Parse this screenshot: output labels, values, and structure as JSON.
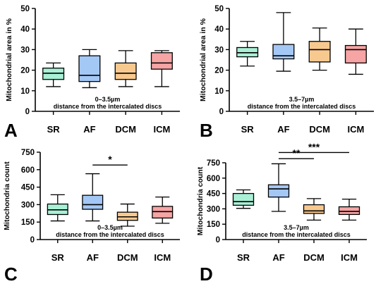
{
  "chart_data": [
    {
      "panel": "A",
      "type": "boxplot",
      "ylabel": "Mitochondrial area in %",
      "xlabel": [
        "0–3.5µm",
        "distance from the intercalated discs"
      ],
      "ylim": [
        0,
        50
      ],
      "yticks": [
        0,
        10,
        20,
        30,
        40,
        50
      ],
      "categories": [
        "SR",
        "AF",
        "DCM",
        "ICM"
      ],
      "boxes": [
        {
          "min": 12,
          "q1": 15.5,
          "median": 18.5,
          "q3": 21,
          "max": 23.5
        },
        {
          "min": 11.5,
          "q1": 14.5,
          "median": 17.5,
          "q3": 27,
          "max": 30
        },
        {
          "min": 12,
          "q1": 15.5,
          "median": 18.5,
          "q3": 23.5,
          "max": 29.5
        },
        {
          "min": 12,
          "q1": 20.5,
          "median": 23.5,
          "q3": 28.5,
          "max": 29.5
        }
      ],
      "significance": []
    },
    {
      "panel": "B",
      "type": "boxplot",
      "ylabel": "Mitochondrial area in %",
      "xlabel": [
        "3.5–7µm",
        "distance from the intercalated discs"
      ],
      "ylim": [
        0,
        50
      ],
      "yticks": [
        0,
        10,
        20,
        30,
        40,
        50
      ],
      "categories": [
        "SR",
        "AF",
        "DCM",
        "ICM"
      ],
      "boxes": [
        {
          "min": 22,
          "q1": 26.5,
          "median": 28.5,
          "q3": 31,
          "max": 34
        },
        {
          "min": 19.5,
          "q1": 25.5,
          "median": 27,
          "q3": 32.5,
          "max": 48
        },
        {
          "min": 20,
          "q1": 24,
          "median": 30,
          "q3": 34,
          "max": 40.5
        },
        {
          "min": 18,
          "q1": 23.5,
          "median": 30,
          "q3": 32,
          "max": 40
        }
      ],
      "significance": []
    },
    {
      "panel": "C",
      "type": "boxplot",
      "ylabel": "Mitochondria count",
      "xlabel": [
        "0–3.5µm",
        "distance from the intercalated discs"
      ],
      "ylim": [
        0,
        750
      ],
      "yticks": [
        0,
        150,
        300,
        450,
        600,
        750
      ],
      "categories": [
        "SR",
        "AF",
        "DCM",
        "ICM"
      ],
      "boxes": [
        {
          "min": 160,
          "q1": 215,
          "median": 255,
          "q3": 305,
          "max": 385
        },
        {
          "min": 160,
          "q1": 260,
          "median": 300,
          "q3": 380,
          "max": 565
        },
        {
          "min": 115,
          "q1": 165,
          "median": 195,
          "q3": 235,
          "max": 305
        },
        {
          "min": 140,
          "q1": 185,
          "median": 240,
          "q3": 285,
          "max": 365
        }
      ],
      "significance": [
        {
          "from": 1,
          "to": 2,
          "label": "*",
          "value": 640
        }
      ]
    },
    {
      "panel": "D",
      "type": "boxplot",
      "ylabel": "Mitochondria count",
      "xlabel": [
        "3.5–7µm",
        "distance from the intercalated discs"
      ],
      "ylim": [
        0,
        750
      ],
      "yticks": [
        0,
        150,
        300,
        450,
        600,
        750
      ],
      "categories": [
        "SR",
        "AF",
        "DCM",
        "ICM"
      ],
      "boxes": [
        {
          "min": 305,
          "q1": 335,
          "median": 370,
          "q3": 450,
          "max": 485
        },
        {
          "min": 275,
          "q1": 415,
          "median": 495,
          "q3": 535,
          "max": 740
        },
        {
          "min": 190,
          "q1": 255,
          "median": 280,
          "q3": 340,
          "max": 400
        },
        {
          "min": 190,
          "q1": 245,
          "median": 275,
          "q3": 320,
          "max": 395
        }
      ],
      "significance": [
        {
          "from": 1,
          "to": 2,
          "label": "**",
          "value": 790
        },
        {
          "from": 1,
          "to": 3,
          "label": "***",
          "value": 850
        }
      ]
    }
  ],
  "colors": {
    "SR": "#a9f0d6",
    "AF": "#a4c8f5",
    "DCM": "#f8c98f",
    "ICM": "#f6a4a4"
  }
}
